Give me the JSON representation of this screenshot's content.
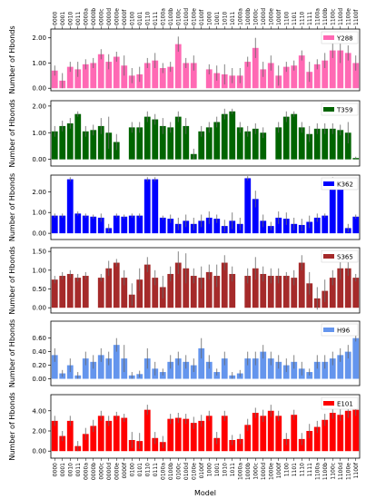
{
  "chart_data": [
    {
      "type": "bar",
      "ylabel": "Number of Hbonds",
      "categories": [
        "0000",
        "0001",
        "0010",
        "0011",
        "0000a",
        "0000b",
        "0000c",
        "0000d",
        "0000e",
        "0000f",
        "0100",
        "0101",
        "0110",
        "0111",
        "0100a",
        "0100b",
        "0100c",
        "0100d",
        "0100e",
        "0100f",
        "1000",
        "1001",
        "1010",
        "1011",
        "1000a",
        "1000b",
        "1000c",
        "1000d",
        "1000e",
        "1000f",
        "1100",
        "1101",
        "1110",
        "1111",
        "1100a",
        "1100b",
        "1100c",
        "1100d",
        "1100e",
        "1100f"
      ],
      "series": [
        {
          "name": "Y288",
          "color": "#ff69b4",
          "values": [
            0.7,
            0.3,
            0.85,
            0.75,
            0.95,
            1.0,
            1.35,
            1.05,
            1.25,
            0.9,
            0.5,
            0.55,
            1.0,
            1.1,
            0.8,
            0.85,
            1.75,
            1.0,
            1.0,
            0.0,
            0.75,
            0.6,
            0.55,
            0.5,
            0.5,
            1.05,
            1.6,
            0.75,
            1.0,
            0.5,
            0.85,
            0.9,
            1.3,
            0.65,
            0.95,
            1.1,
            1.5,
            1.5,
            1.4,
            1.0
          ],
          "errors": [
            0.2,
            0.3,
            0.2,
            0.3,
            0.2,
            0.2,
            0.2,
            0.3,
            0.2,
            0.4,
            0.3,
            0.3,
            0.2,
            0.3,
            0.2,
            0.2,
            0.3,
            0.2,
            0.3,
            0.0,
            0.2,
            0.3,
            0.4,
            0.3,
            0.3,
            0.2,
            0.4,
            0.3,
            0.3,
            0.4,
            0.2,
            0.2,
            0.2,
            0.4,
            0.2,
            0.3,
            0.3,
            0.5,
            0.3,
            0.3
          ]
        }
      ],
      "ylim": [
        -0.1,
        2.35
      ],
      "yticks": [
        {
          "value": 0,
          "label": "0.00"
        },
        {
          "value": 1,
          "label": "1.00"
        },
        {
          "value": 2,
          "label": "2.00"
        }
      ],
      "legend": "upper right"
    },
    {
      "type": "bar",
      "ylabel": "Number of Hbonds",
      "series": [
        {
          "name": "T359",
          "color": "#006400",
          "values": [
            1.05,
            1.25,
            1.35,
            1.7,
            1.05,
            1.1,
            1.25,
            1.0,
            0.65,
            0.0,
            1.2,
            1.2,
            1.6,
            1.5,
            1.25,
            1.2,
            1.6,
            1.25,
            0.2,
            1.05,
            1.2,
            1.4,
            1.7,
            1.8,
            1.2,
            1.05,
            1.15,
            1.0,
            0.0,
            1.2,
            1.6,
            1.7,
            1.2,
            0.95,
            1.15,
            1.15,
            1.15,
            1.1,
            1.0,
            0.05
          ],
          "errors": [
            0.2,
            0.2,
            0.2,
            0.1,
            0.2,
            0.2,
            0.3,
            0.6,
            0.3,
            0.0,
            0.2,
            0.2,
            0.2,
            0.2,
            0.3,
            0.2,
            0.2,
            0.3,
            0.2,
            0.2,
            0.2,
            0.2,
            0.2,
            0.1,
            0.2,
            0.2,
            0.2,
            0.2,
            0.0,
            0.2,
            0.2,
            0.1,
            0.2,
            0.3,
            0.2,
            0.2,
            0.2,
            0.2,
            0.4,
            0.05
          ]
        }
      ],
      "ylim": [
        -0.25,
        2.2
      ],
      "yticks": [
        {
          "value": 0,
          "label": "0.00"
        },
        {
          "value": 1,
          "label": "1.00"
        },
        {
          "value": 2,
          "label": "2.00"
        }
      ],
      "legend": "upper right"
    },
    {
      "type": "bar",
      "ylabel": "Number of Hbonds",
      "series": [
        {
          "name": "K362",
          "color": "#0000ff",
          "values": [
            0.85,
            0.85,
            2.6,
            0.95,
            0.85,
            0.8,
            0.75,
            0.25,
            0.85,
            0.8,
            0.85,
            0.85,
            2.6,
            2.6,
            0.75,
            0.7,
            0.45,
            0.6,
            0.45,
            0.6,
            0.75,
            0.7,
            0.35,
            0.6,
            0.45,
            2.65,
            1.65,
            0.6,
            0.35,
            0.75,
            0.7,
            0.45,
            0.4,
            0.55,
            0.75,
            0.85,
            2.6,
            2.55,
            0.25,
            0.8
          ],
          "errors": [
            0.1,
            0.1,
            0.1,
            0.1,
            0.1,
            0.1,
            0.2,
            0.2,
            0.1,
            0.1,
            0.1,
            0.1,
            0.1,
            0.1,
            0.1,
            0.2,
            0.3,
            0.3,
            0.3,
            0.3,
            0.3,
            0.2,
            0.3,
            0.4,
            0.3,
            0.1,
            0.4,
            0.3,
            0.2,
            0.3,
            0.3,
            0.3,
            0.3,
            0.3,
            0.2,
            0.1,
            0.1,
            0.1,
            0.2,
            0.1
          ]
        }
      ],
      "ylim": [
        -0.3,
        2.8
      ],
      "yticks": [
        {
          "value": 0,
          "label": "0.00"
        },
        {
          "value": 1,
          "label": "1.00"
        },
        {
          "value": 2,
          "label": "2.00"
        }
      ],
      "legend": "upper right"
    },
    {
      "type": "bar",
      "ylabel": "Number of Hbonds",
      "series": [
        {
          "name": "S365",
          "color": "#a52a2a",
          "values": [
            0.75,
            0.85,
            0.9,
            0.8,
            0.85,
            0.0,
            0.8,
            1.05,
            1.2,
            0.8,
            0.35,
            0.75,
            1.15,
            0.8,
            0.55,
            0.9,
            1.2,
            1.05,
            0.85,
            0.8,
            0.95,
            0.85,
            1.2,
            0.9,
            0.0,
            0.85,
            1.05,
            0.9,
            0.85,
            0.85,
            0.85,
            0.8,
            1.2,
            0.65,
            0.25,
            0.45,
            0.8,
            1.05,
            1.05,
            0.8
          ],
          "errors": [
            0.1,
            0.1,
            0.1,
            0.1,
            0.1,
            0.0,
            0.1,
            0.2,
            0.1,
            0.2,
            0.3,
            0.3,
            0.2,
            0.2,
            0.3,
            0.2,
            0.3,
            0.4,
            0.2,
            0.3,
            0.2,
            0.3,
            0.2,
            0.2,
            0.0,
            0.2,
            0.3,
            0.2,
            0.2,
            0.2,
            0.1,
            0.2,
            0.2,
            0.3,
            0.3,
            0.3,
            0.2,
            0.3,
            0.2,
            0.1
          ]
        }
      ],
      "ylim": [
        -0.14,
        1.6
      ],
      "yticks": [
        {
          "value": 0,
          "label": "0.00"
        },
        {
          "value": 0.5,
          "label": "0.50"
        },
        {
          "value": 1,
          "label": "1.00"
        },
        {
          "value": 1.5,
          "label": "1.50"
        }
      ],
      "legend": "upper right"
    },
    {
      "type": "bar",
      "ylabel": "Number of Hbonds",
      "series": [
        {
          "name": "H96",
          "color": "#6495ed",
          "values": [
            0.35,
            0.08,
            0.2,
            0.05,
            0.3,
            0.25,
            0.35,
            0.3,
            0.5,
            0.3,
            0.05,
            0.07,
            0.3,
            0.15,
            0.1,
            0.25,
            0.3,
            0.25,
            0.2,
            0.45,
            0.25,
            0.1,
            0.3,
            0.05,
            0.08,
            0.3,
            0.3,
            0.4,
            0.3,
            0.25,
            0.2,
            0.25,
            0.15,
            0.1,
            0.25,
            0.25,
            0.3,
            0.35,
            0.4,
            0.6
          ],
          "errors": [
            0.1,
            0.05,
            0.1,
            0.05,
            0.1,
            0.1,
            0.1,
            0.1,
            0.1,
            0.2,
            0.05,
            0.05,
            0.15,
            0.1,
            0.05,
            0.1,
            0.1,
            0.1,
            0.1,
            0.15,
            0.1,
            0.05,
            0.1,
            0.05,
            0.05,
            0.1,
            0.1,
            0.1,
            0.1,
            0.1,
            0.1,
            0.1,
            0.1,
            0.05,
            0.1,
            0.1,
            0.1,
            0.1,
            0.1,
            0.05
          ]
        }
      ],
      "ylim": [
        -0.1,
        0.85
      ],
      "yticks": [
        {
          "value": 0,
          "label": "0.00"
        },
        {
          "value": 0.2,
          "label": "0.20"
        },
        {
          "value": 0.4,
          "label": "0.40"
        },
        {
          "value": 0.6,
          "label": "0.60"
        }
      ],
      "legend": "upper right"
    },
    {
      "type": "bar",
      "ylabel": "Number of Hbonds",
      "xlabel": "Model",
      "categories": [
        "0000",
        "0001",
        "0010",
        "0011",
        "0000a",
        "0000b",
        "0000c",
        "0000d",
        "0000e",
        "0000f",
        "0100",
        "0101",
        "0110",
        "0111",
        "0100a",
        "0100b",
        "0100c",
        "0100d",
        "0100e",
        "0100f",
        "1000",
        "1001",
        "1010",
        "1011",
        "1000a",
        "1000b",
        "1000c",
        "1000d",
        "1000e",
        "1000f",
        "1100",
        "1101",
        "1110",
        "1111",
        "1100a",
        "1100b",
        "1100c",
        "1100d",
        "1100e",
        "1100f"
      ],
      "series": [
        {
          "name": "E101",
          "color": "#ff0000",
          "values": [
            3.0,
            1.5,
            3.0,
            0.5,
            1.7,
            2.5,
            3.5,
            3.0,
            3.5,
            3.3,
            1.1,
            1.0,
            4.1,
            1.3,
            0.9,
            3.2,
            3.3,
            3.2,
            2.8,
            3.0,
            3.5,
            1.3,
            3.5,
            1.1,
            1.2,
            2.6,
            3.8,
            3.5,
            4.0,
            3.5,
            1.2,
            3.6,
            1.2,
            2.0,
            2.4,
            3.1,
            3.8,
            3.6,
            4.0,
            4.1
          ],
          "errors": [
            0.5,
            0.5,
            0.5,
            0.5,
            0.6,
            0.6,
            0.5,
            0.5,
            0.4,
            0.4,
            0.8,
            0.8,
            0.5,
            0.6,
            0.6,
            0.5,
            0.5,
            0.5,
            0.6,
            0.6,
            0.5,
            0.6,
            0.5,
            0.5,
            0.5,
            0.6,
            0.5,
            0.6,
            0.6,
            0.5,
            0.6,
            0.5,
            0.6,
            0.7,
            0.6,
            0.6,
            0.6,
            0.6,
            0.7,
            0.6
          ]
        }
      ],
      "ylim": [
        -0.7,
        5.6
      ],
      "yticks": [
        {
          "value": 0,
          "label": "0.00"
        },
        {
          "value": 2,
          "label": "2.00"
        },
        {
          "value": 4,
          "label": "4.00"
        }
      ],
      "legend": "upper right"
    }
  ]
}
